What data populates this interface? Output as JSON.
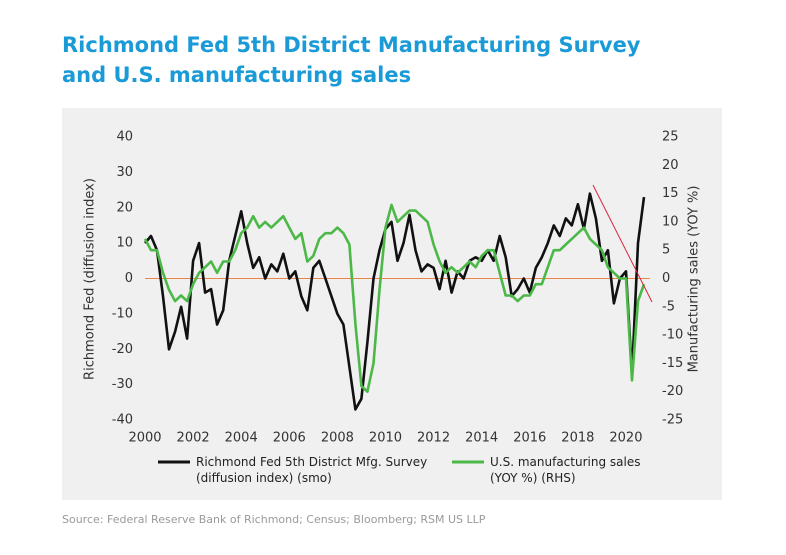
{
  "chart_data": {
    "type": "line",
    "title": "Richmond Fed 5th District Manufacturing Survey",
    "subtitle": "and U.S. manufacturing sales",
    "y_label": "Richmond Fed (diffusion index)",
    "y2_label": "Manufacturing sales (YOY %)",
    "source": "Source: Federal Reserve Bank of Richmond; Census; Bloomberg; RSM US LLP",
    "xlim": [
      2000,
      2021
    ],
    "xticks": [
      2000,
      2002,
      2004,
      2006,
      2008,
      2010,
      2012,
      2014,
      2016,
      2018,
      2020
    ],
    "ylim": [
      -40,
      40
    ],
    "yticks": [
      -40,
      -30,
      -20,
      -10,
      0,
      10,
      20,
      30,
      40
    ],
    "y2lim": [
      -25,
      25
    ],
    "y2ticks": [
      -25,
      -20,
      -15,
      -10,
      -5,
      0,
      5,
      10,
      15,
      20,
      25
    ],
    "legend": "bottom",
    "x": [
      2000,
      2000.25,
      2000.5,
      2000.75,
      2001,
      2001.25,
      2001.5,
      2001.75,
      2002,
      2002.25,
      2002.5,
      2002.75,
      2003,
      2003.25,
      2003.5,
      2003.75,
      2004,
      2004.25,
      2004.5,
      2004.75,
      2005,
      2005.25,
      2005.5,
      2005.75,
      2006,
      2006.25,
      2006.5,
      2006.75,
      2007,
      2007.25,
      2007.5,
      2007.75,
      2008,
      2008.25,
      2008.5,
      2008.75,
      2009,
      2009.25,
      2009.5,
      2009.75,
      2010,
      2010.25,
      2010.5,
      2010.75,
      2011,
      2011.25,
      2011.5,
      2011.75,
      2012,
      2012.25,
      2012.5,
      2012.75,
      2013,
      2013.25,
      2013.5,
      2013.75,
      2014,
      2014.25,
      2014.5,
      2014.75,
      2015,
      2015.25,
      2015.5,
      2015.75,
      2016,
      2016.25,
      2016.5,
      2016.75,
      2017,
      2017.25,
      2017.5,
      2017.75,
      2018,
      2018.25,
      2018.5,
      2018.75,
      2019,
      2019.25,
      2019.5,
      2019.75,
      2020,
      2020.25,
      2020.5,
      2020.75
    ],
    "series": [
      {
        "name": "Richmond Fed 5th District Mfg. Survey (diffusion index) (smo)",
        "color": "#111111",
        "axis": "y",
        "values": [
          10,
          12,
          8,
          -5,
          -20,
          -15,
          -8,
          -17,
          5,
          10,
          -4,
          -3,
          -13,
          -9,
          5,
          12,
          19,
          10,
          3,
          6,
          0,
          4,
          2,
          7,
          0,
          2,
          -5,
          -9,
          3,
          5,
          0,
          -5,
          -10,
          -13,
          -25,
          -37,
          -34,
          -18,
          0,
          8,
          14,
          16,
          5,
          10,
          18,
          8,
          2,
          4,
          3,
          -3,
          5,
          -4,
          2,
          0,
          5,
          6,
          5,
          8,
          5,
          12,
          6,
          -5,
          -3,
          0,
          -4,
          3,
          6,
          10,
          15,
          12,
          17,
          15,
          21,
          14,
          24,
          17,
          5,
          8,
          -7,
          0,
          2,
          -27,
          10,
          23
        ]
      },
      {
        "name": "U.S. manufacturing sales (YOY %) (RHS)",
        "color": "#4cb848",
        "axis": "y2",
        "values": [
          7,
          5,
          5,
          1,
          -2,
          -4,
          -3,
          -4,
          -1,
          1,
          2,
          3,
          1,
          3,
          3,
          5,
          8,
          9,
          11,
          9,
          10,
          9,
          10,
          11,
          9,
          7,
          8,
          3,
          4,
          7,
          8,
          8,
          9,
          8,
          6,
          -8,
          -19,
          -20,
          -15,
          -2,
          9,
          13,
          10,
          11,
          12,
          12,
          11,
          10,
          6,
          3,
          1,
          2,
          1,
          2,
          3,
          2,
          4,
          5,
          5,
          1,
          -3,
          -3,
          -4,
          -3,
          -3,
          -1,
          -1,
          2,
          5,
          5,
          6,
          7,
          8,
          9,
          7,
          6,
          5,
          2,
          1,
          0,
          0,
          -18,
          -4,
          -1
        ]
      }
    ]
  }
}
